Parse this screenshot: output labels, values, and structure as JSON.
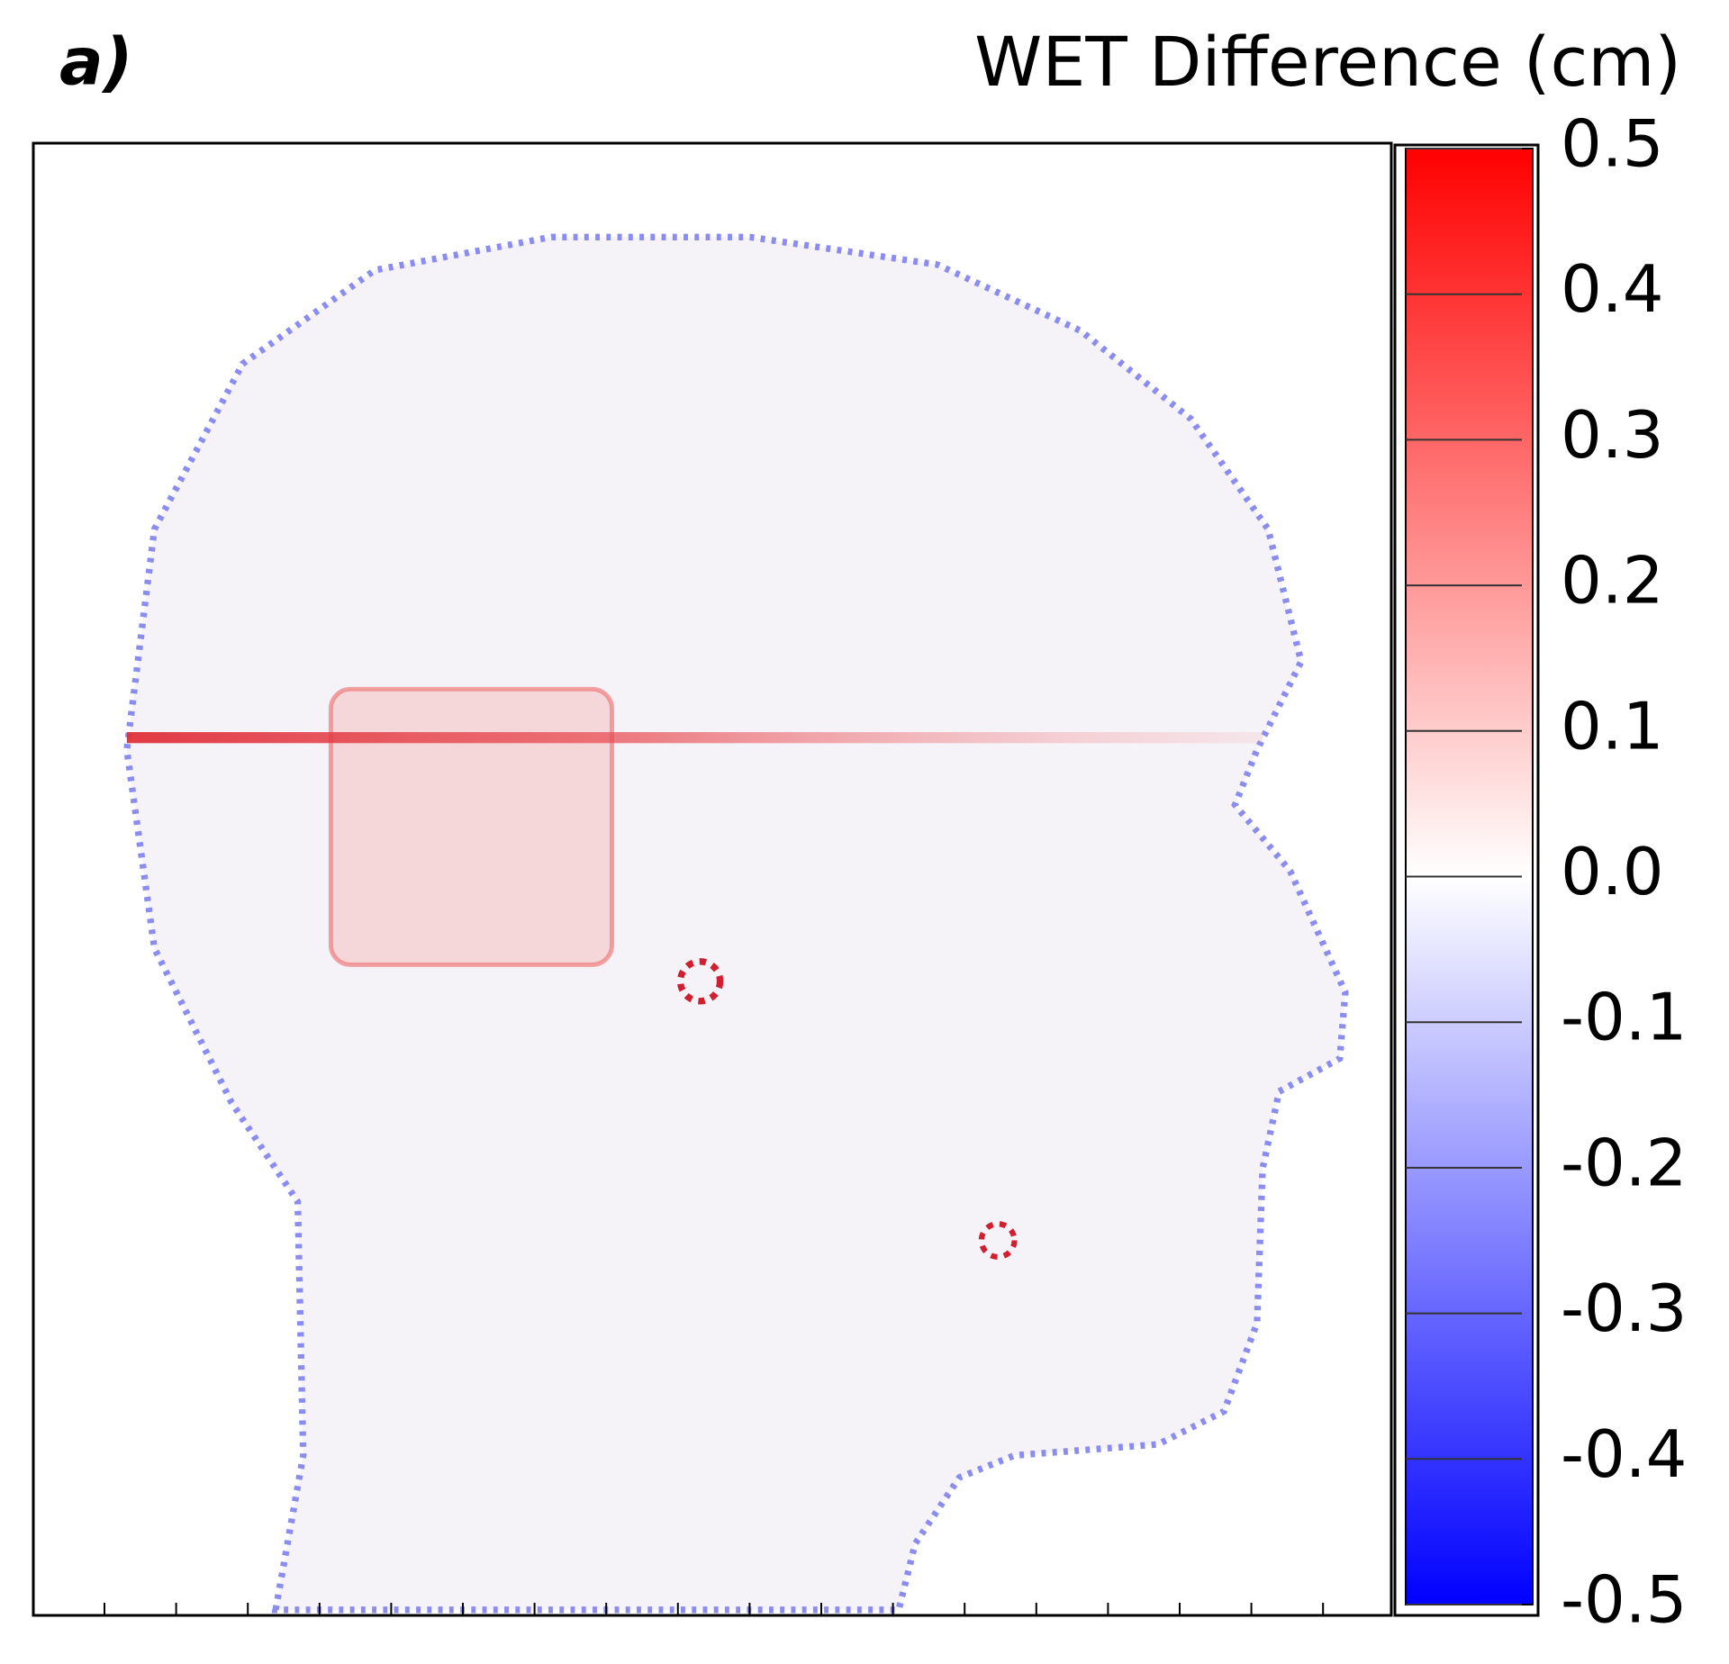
{
  "chart_data": {
    "type": "heatmap",
    "panel_label": "a)",
    "colorbar_title": "WET Difference (cm)",
    "zlim": [
      -0.5,
      0.5
    ],
    "zticks": [
      0.5,
      0.4,
      0.3,
      0.2,
      0.1,
      {
        "value": 0,
        "label": "0.0"
      },
      -0.1,
      -0.2,
      -0.3,
      -0.4,
      -0.5
    ],
    "colormap": [
      "#0000ff",
      "#ffffff",
      "#ff0000"
    ]
  }
}
